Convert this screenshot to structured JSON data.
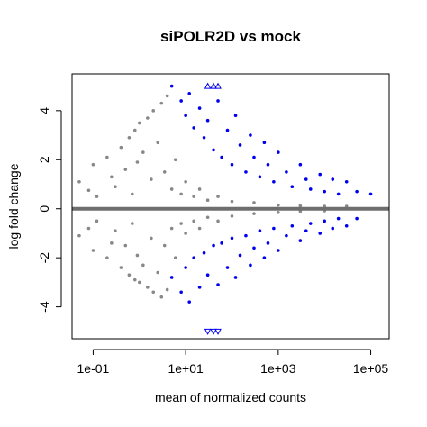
{
  "chart_data": {
    "type": "scatter",
    "title": "siPOLR2D vs mock",
    "xlabel": "mean of normalized counts",
    "ylabel": "log fold change",
    "x_scale": "log",
    "xlim": [
      0.035,
      250000
    ],
    "ylim": [
      -5.3,
      5.5
    ],
    "x_ticks": [
      {
        "value": 0.1,
        "label": "1e-01"
      },
      {
        "value": 10,
        "label": "1e+01"
      },
      {
        "value": 1000,
        "label": "1e+03"
      },
      {
        "value": 100000,
        "label": "1e+05"
      }
    ],
    "y_ticks": [
      {
        "value": -4,
        "label": "-4"
      },
      {
        "value": -2,
        "label": "-2"
      },
      {
        "value": 0,
        "label": "0"
      },
      {
        "value": 2,
        "label": "2"
      },
      {
        "value": 4,
        "label": "4"
      }
    ],
    "reference_line": {
      "y": 0,
      "color": "#6e6e6e"
    },
    "grid": false,
    "legend": "none",
    "series": [
      {
        "color": "#888888",
        "marker": "dot",
        "points": [
          [
            0.05,
            1.1
          ],
          [
            0.05,
            -1.1
          ],
          [
            0.08,
            0.75
          ],
          [
            0.08,
            -0.8
          ],
          [
            0.1,
            1.8
          ],
          [
            0.1,
            -1.7
          ],
          [
            0.12,
            0.5
          ],
          [
            0.12,
            -0.5
          ],
          [
            0.2,
            2.1
          ],
          [
            0.2,
            -2.0
          ],
          [
            0.25,
            1.3
          ],
          [
            0.25,
            -1.4
          ],
          [
            0.3,
            0.9
          ],
          [
            0.3,
            -0.9
          ],
          [
            0.4,
            2.5
          ],
          [
            0.4,
            -2.4
          ],
          [
            0.5,
            1.6
          ],
          [
            0.5,
            -1.5
          ],
          [
            0.6,
            2.9
          ],
          [
            0.6,
            -2.7
          ],
          [
            0.7,
            0.6
          ],
          [
            0.7,
            -0.6
          ],
          [
            0.8,
            3.2
          ],
          [
            0.8,
            -2.9
          ],
          [
            0.9,
            1.9
          ],
          [
            0.9,
            -1.9
          ],
          [
            1.0,
            3.5
          ],
          [
            1.0,
            -3.0
          ],
          [
            1.2,
            2.3
          ],
          [
            1.2,
            -2.3
          ],
          [
            1.5,
            3.7
          ],
          [
            1.5,
            -3.2
          ],
          [
            1.8,
            1.2
          ],
          [
            1.8,
            -1.2
          ],
          [
            2.0,
            4.0
          ],
          [
            2.0,
            -3.4
          ],
          [
            2.5,
            2.7
          ],
          [
            2.5,
            -2.6
          ],
          [
            3.0,
            4.3
          ],
          [
            3.0,
            -3.6
          ],
          [
            3.5,
            1.5
          ],
          [
            3.5,
            -1.5
          ],
          [
            4.0,
            4.6
          ],
          [
            4.0,
            -3.3
          ],
          [
            5.0,
            0.8
          ],
          [
            5.0,
            -0.8
          ],
          [
            6.0,
            2.0
          ],
          [
            6.0,
            -2.0
          ],
          [
            8.0,
            0.6
          ],
          [
            8.0,
            -0.6
          ],
          [
            10,
            1.1
          ],
          [
            10,
            -1.0
          ],
          [
            15,
            0.5
          ],
          [
            15,
            -0.5
          ],
          [
            20,
            0.8
          ],
          [
            20,
            -0.8
          ],
          [
            30,
            0.35
          ],
          [
            30,
            -0.35
          ],
          [
            50,
            0.5
          ],
          [
            50,
            -0.5
          ],
          [
            100,
            0.3
          ],
          [
            100,
            -0.3
          ],
          [
            300,
            0.25
          ],
          [
            300,
            -0.2
          ],
          [
            1000,
            0.15
          ],
          [
            1000,
            -0.15
          ],
          [
            3000,
            0.12
          ],
          [
            3000,
            -0.1
          ],
          [
            10000,
            0.1
          ],
          [
            10000,
            -0.08
          ],
          [
            30000,
            0.1
          ]
        ]
      },
      {
        "color": "#0000ee",
        "marker": "dot",
        "points": [
          [
            5,
            5.0
          ],
          [
            8,
            4.4
          ],
          [
            10,
            3.8
          ],
          [
            12,
            4.7
          ],
          [
            15,
            3.3
          ],
          [
            20,
            4.1
          ],
          [
            25,
            2.9
          ],
          [
            30,
            3.6
          ],
          [
            40,
            2.4
          ],
          [
            50,
            4.4
          ],
          [
            60,
            2.1
          ],
          [
            80,
            3.2
          ],
          [
            100,
            1.8
          ],
          [
            120,
            3.8
          ],
          [
            150,
            2.6
          ],
          [
            200,
            1.5
          ],
          [
            250,
            3.0
          ],
          [
            300,
            2.1
          ],
          [
            400,
            1.3
          ],
          [
            500,
            2.7
          ],
          [
            600,
            1.8
          ],
          [
            800,
            1.1
          ],
          [
            1000,
            2.3
          ],
          [
            1500,
            1.5
          ],
          [
            2000,
            0.9
          ],
          [
            3000,
            1.8
          ],
          [
            4000,
            1.2
          ],
          [
            5000,
            0.8
          ],
          [
            8000,
            1.4
          ],
          [
            10000,
            0.7
          ],
          [
            15000,
            1.2
          ],
          [
            20000,
            0.6
          ],
          [
            30000,
            1.1
          ],
          [
            50000,
            0.7
          ],
          [
            100000,
            0.6
          ],
          [
            5,
            -2.8
          ],
          [
            8,
            -3.4
          ],
          [
            10,
            -2.4
          ],
          [
            12,
            -3.8
          ],
          [
            15,
            -2.0
          ],
          [
            20,
            -3.2
          ],
          [
            25,
            -1.8
          ],
          [
            30,
            -2.7
          ],
          [
            40,
            -1.5
          ],
          [
            50,
            -3.1
          ],
          [
            60,
            -1.4
          ],
          [
            80,
            -2.4
          ],
          [
            100,
            -1.2
          ],
          [
            120,
            -2.8
          ],
          [
            150,
            -1.9
          ],
          [
            200,
            -1.1
          ],
          [
            250,
            -2.3
          ],
          [
            300,
            -1.6
          ],
          [
            400,
            -0.9
          ],
          [
            500,
            -2.0
          ],
          [
            600,
            -1.4
          ],
          [
            800,
            -0.8
          ],
          [
            1000,
            -1.7
          ],
          [
            1500,
            -1.1
          ],
          [
            2000,
            -0.7
          ],
          [
            3000,
            -1.3
          ],
          [
            4000,
            -0.9
          ],
          [
            5000,
            -0.6
          ],
          [
            8000,
            -1.0
          ],
          [
            10000,
            -0.5
          ],
          [
            15000,
            -0.8
          ],
          [
            20000,
            -0.4
          ],
          [
            30000,
            -0.7
          ],
          [
            50000,
            -0.4
          ]
        ]
      },
      {
        "color": "#0000ee",
        "marker": "triangle-up",
        "points": [
          [
            30,
            5.0
          ],
          [
            40,
            5.0
          ],
          [
            50,
            5.0
          ]
        ]
      },
      {
        "color": "#0000ee",
        "marker": "triangle-down",
        "points": [
          [
            30,
            -5.0
          ],
          [
            40,
            -5.0
          ],
          [
            50,
            -5.0
          ]
        ]
      }
    ]
  }
}
